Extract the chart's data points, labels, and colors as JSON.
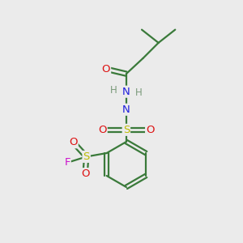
{
  "background_color": "#ebebeb",
  "atom_colors": {
    "C": "#3a7a3a",
    "H": "#7a9a7a",
    "N": "#2020dd",
    "O": "#dd1111",
    "S": "#bbbb00",
    "F": "#cc11cc"
  },
  "bond_color": "#3a7a3a",
  "bond_lw": 1.6,
  "figsize": [
    3.0,
    3.0
  ],
  "dpi": 100
}
